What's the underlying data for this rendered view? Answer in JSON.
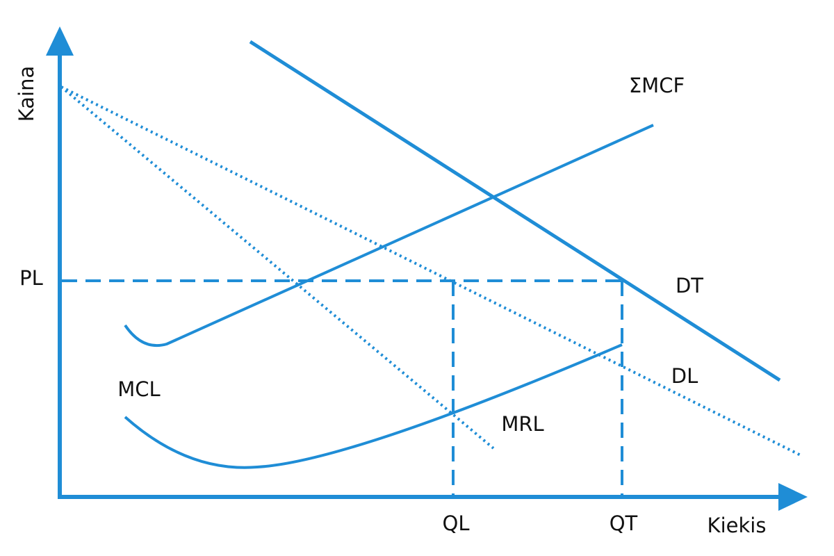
{
  "axes": {
    "y_label": "Kaina",
    "x_label": "Kiekis"
  },
  "levels": {
    "price": "PL",
    "quantity_l": "QL",
    "quantity_t": "QT"
  },
  "curves": {
    "smcf": "ΣMCF",
    "dt": "DT",
    "dl": "DL",
    "mcl": "MCL",
    "mrl": "MRL"
  }
}
